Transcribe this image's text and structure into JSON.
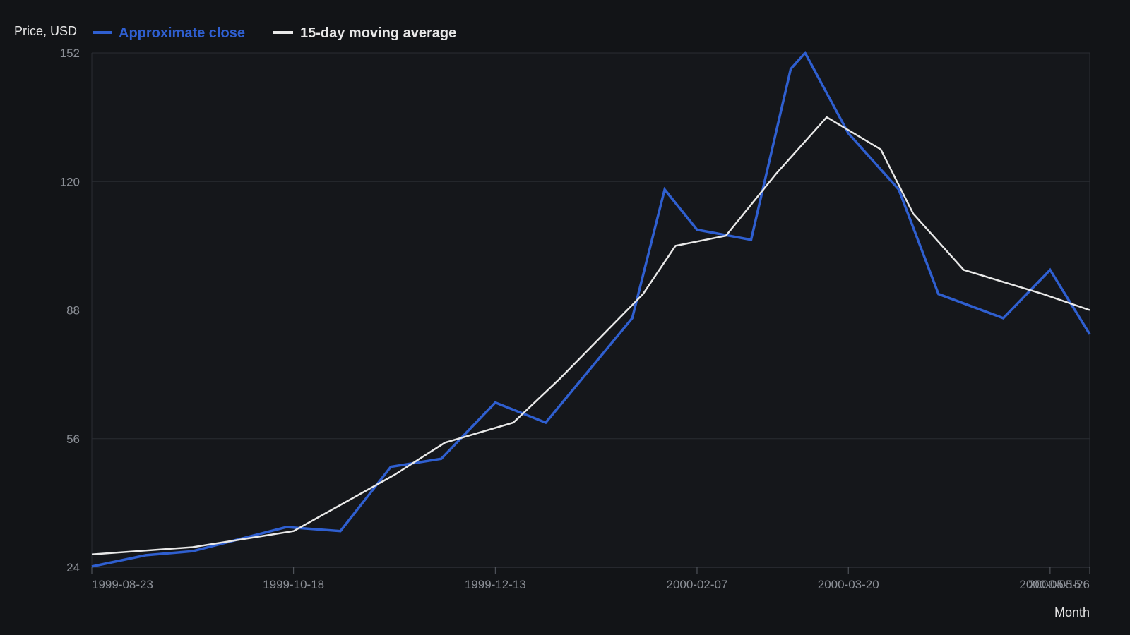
{
  "chart_data": {
    "type": "line",
    "ylabel": "Price, USD",
    "xlabel": "Month",
    "ylim": [
      24,
      152
    ],
    "yticks": [
      24,
      56,
      88,
      120,
      152
    ],
    "xlim": [
      "1999-08-23",
      "2000-05-26"
    ],
    "xticks": [
      "1999-08-23",
      "1999-10-18",
      "1999-12-13",
      "2000-02-07",
      "2000-03-20",
      "2000-05-15",
      "2000-05-26"
    ],
    "grid": "horizontal",
    "legend_position": "top-left",
    "series": [
      {
        "name": "Approximate close",
        "color": "#2f5fd0",
        "points": [
          {
            "x": "1999-08-23",
            "y": 24.2
          },
          {
            "x": "1999-09-07",
            "y": 27.0
          },
          {
            "x": "1999-09-20",
            "y": 28.0
          },
          {
            "x": "1999-10-16",
            "y": 34.0
          },
          {
            "x": "1999-10-31",
            "y": 33.0
          },
          {
            "x": "1999-11-14",
            "y": 49.0
          },
          {
            "x": "1999-11-28",
            "y": 51.0
          },
          {
            "x": "1999-12-13",
            "y": 65.0
          },
          {
            "x": "1999-12-27",
            "y": 60.0
          },
          {
            "x": "2000-01-20",
            "y": 86.0
          },
          {
            "x": "2000-01-29",
            "y": 118.0
          },
          {
            "x": "2000-02-07",
            "y": 108.0
          },
          {
            "x": "2000-02-22",
            "y": 105.5
          },
          {
            "x": "2000-03-04",
            "y": 148.0
          },
          {
            "x": "2000-03-08",
            "y": 152.0
          },
          {
            "x": "2000-03-20",
            "y": 132.0
          },
          {
            "x": "2000-04-03",
            "y": 118.0
          },
          {
            "x": "2000-04-14",
            "y": 92.0
          },
          {
            "x": "2000-05-02",
            "y": 86.0
          },
          {
            "x": "2000-05-15",
            "y": 98.0
          },
          {
            "x": "2000-05-28",
            "y": 82.0
          }
        ]
      },
      {
        "name": "15-day moving average",
        "color": "#e8e8e8",
        "points": [
          {
            "x": "1999-08-23",
            "y": 27.2
          },
          {
            "x": "1999-09-20",
            "y": 29.0
          },
          {
            "x": "1999-10-18",
            "y": 33.0
          },
          {
            "x": "1999-11-01",
            "y": 40.0
          },
          {
            "x": "1999-11-15",
            "y": 47.0
          },
          {
            "x": "1999-11-29",
            "y": 55.0
          },
          {
            "x": "1999-12-18",
            "y": 60.0
          },
          {
            "x": "1999-12-31",
            "y": 71.0
          },
          {
            "x": "2000-01-23",
            "y": 92.0
          },
          {
            "x": "2000-02-01",
            "y": 104.0
          },
          {
            "x": "2000-02-15",
            "y": 106.5
          },
          {
            "x": "2000-02-29",
            "y": 122.0
          },
          {
            "x": "2000-03-14",
            "y": 136.0
          },
          {
            "x": "2000-03-29",
            "y": 128.0
          },
          {
            "x": "2000-04-07",
            "y": 112.0
          },
          {
            "x": "2000-04-21",
            "y": 98.0
          },
          {
            "x": "2000-05-13",
            "y": 92.0
          },
          {
            "x": "2000-05-28",
            "y": 88.0
          }
        ]
      }
    ]
  }
}
